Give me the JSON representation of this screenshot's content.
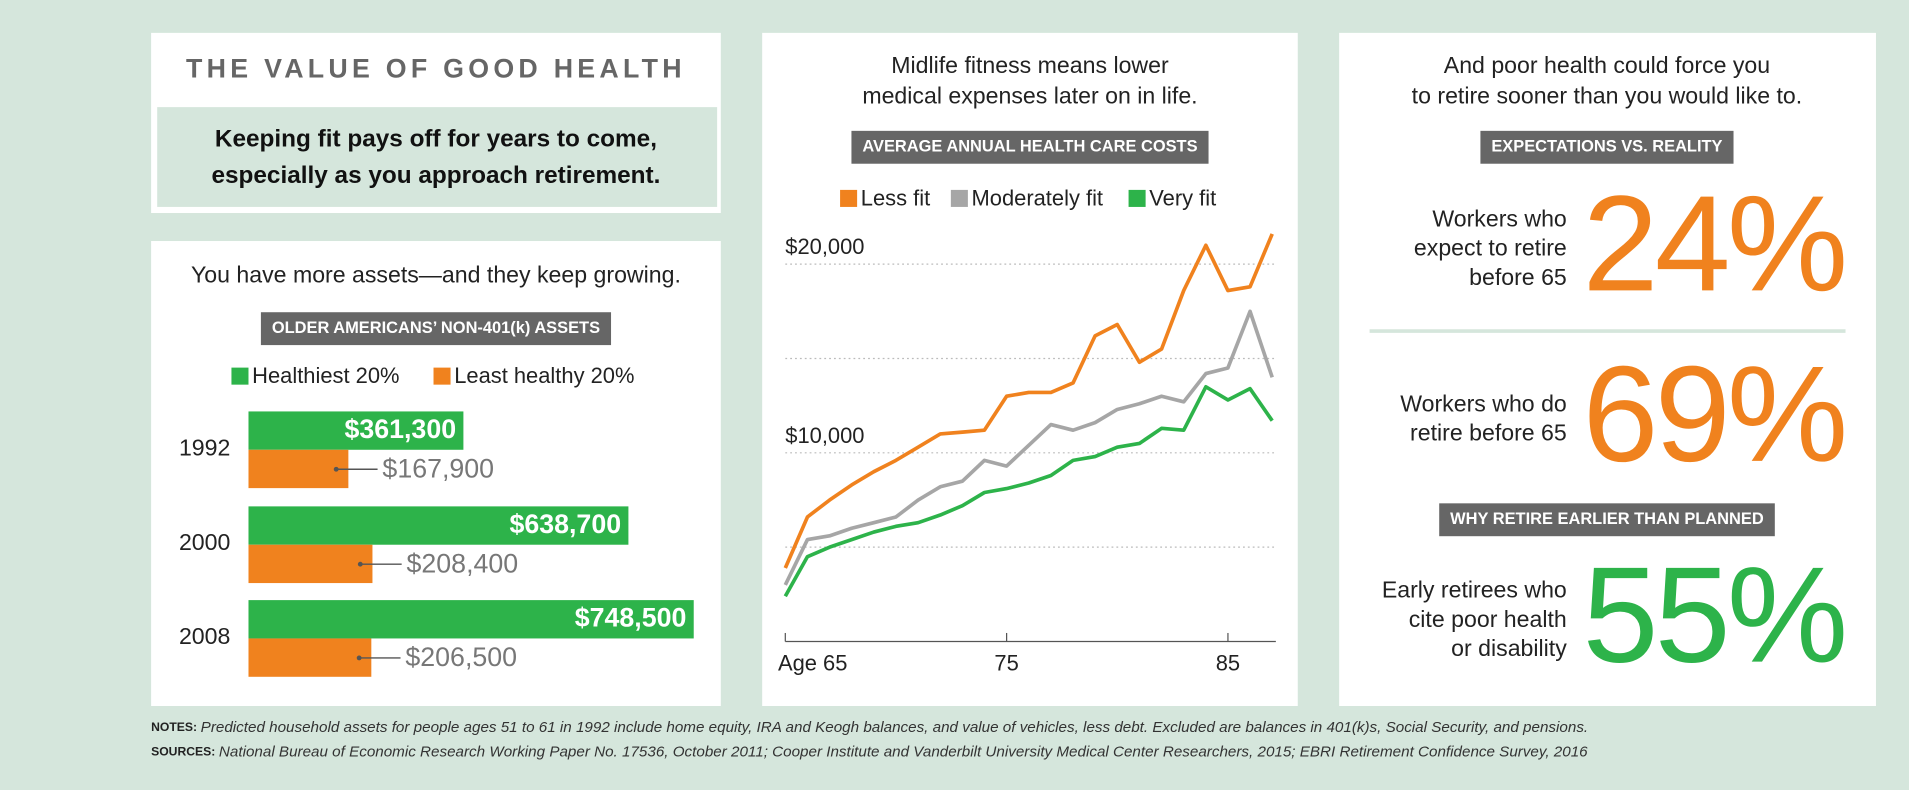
{
  "header": {
    "title": "THE VALUE OF GOOD HEALTH",
    "subtitle": [
      "Keeping fit pays off for years to come,",
      "especially as you approach retirement."
    ]
  },
  "chart_data": [
    {
      "type": "hbar",
      "intro": "You have more assets—and they keep growing.",
      "title": "OLDER AMERICANS’ NON-401(k) ASSETS",
      "categories": [
        "1992",
        "2000",
        "2008"
      ],
      "series": [
        {
          "name": "Healthiest 20%",
          "color": "#2db34a",
          "values": [
            361300,
            638700,
            748500
          ],
          "value_labels": [
            "$361,300",
            "$638,700",
            "$748,500"
          ]
        },
        {
          "name": "Least healthy 20%",
          "color": "#f0821e",
          "values": [
            167900,
            208400,
            206500
          ],
          "value_labels": [
            "$167,900",
            "$208,400",
            "$206,500"
          ]
        }
      ],
      "xlim": [
        0,
        750000
      ]
    },
    {
      "type": "line",
      "intro": [
        "Midlife fitness means lower",
        "medical expenses later on in life."
      ],
      "title": "AVERAGE ANNUAL HEALTH CARE COSTS",
      "x": [
        65,
        66,
        67,
        68,
        69,
        70,
        71,
        72,
        73,
        74,
        75,
        76,
        77,
        78,
        79,
        80,
        81,
        82,
        83,
        84,
        85,
        86,
        87
      ],
      "series": [
        {
          "name": "Less fit",
          "color": "#f0821e",
          "values": [
            3900,
            6600,
            7500,
            8300,
            9000,
            9600,
            10300,
            11000,
            11100,
            11200,
            13000,
            13200,
            13200,
            13700,
            16200,
            16800,
            14800,
            15500,
            18600,
            21000,
            18600,
            18800,
            21600
          ]
        },
        {
          "name": "Moderately fit",
          "color": "#a6a6a6",
          "values": [
            3000,
            5400,
            5600,
            6000,
            6300,
            6600,
            7500,
            8200,
            8500,
            9600,
            9300,
            10400,
            11500,
            11200,
            11600,
            12300,
            12600,
            13000,
            12700,
            14200,
            14500,
            17500,
            14000
          ]
        },
        {
          "name": "Very fit",
          "color": "#2db34a",
          "values": [
            2400,
            4500,
            5000,
            5400,
            5800,
            6100,
            6300,
            6700,
            7200,
            7900,
            8100,
            8400,
            8800,
            9600,
            9800,
            10300,
            10500,
            11300,
            11200,
            13500,
            12800,
            13400,
            11700
          ]
        }
      ],
      "xlim": [
        65,
        87
      ],
      "xticks": [
        {
          "value": 65,
          "label": "Age 65"
        },
        75,
        85
      ],
      "ylim": [
        0,
        22000
      ],
      "yticks": [
        {
          "value": 5000,
          "label": null
        },
        {
          "value": 10000,
          "label": "$10,000"
        },
        {
          "value": 15000,
          "label": null
        },
        {
          "value": 20000,
          "label": "$20,000"
        }
      ],
      "grid": true
    }
  ],
  "stats_panel": {
    "intro": [
      "And poor health could force you",
      "to retire sooner than you would like to."
    ],
    "sections": [
      {
        "heading": "EXPECTATIONS VS. REALITY",
        "items": [
          {
            "label_lines": [
              "Workers who",
              "expect to retire",
              "before 65"
            ],
            "value": 24,
            "value_label": "24%",
            "color": "#f0821e"
          },
          {
            "label_lines": [
              "Workers who do",
              "retire before 65"
            ],
            "value": 69,
            "value_label": "69%",
            "color": "#f0821e"
          }
        ]
      },
      {
        "heading": "WHY RETIRE EARLIER THAN PLANNED",
        "items": [
          {
            "label_lines": [
              "Early retirees who",
              "cite poor health",
              "or disability"
            ],
            "value": 55,
            "value_label": "55%",
            "color": "#2db34a"
          }
        ]
      }
    ]
  },
  "notes": [
    {
      "label": "NOTES:",
      "text": "Predicted household assets for people ages 51 to 61 in 1992 include home equity, IRA and Keogh balances, and value of vehicles, less debt. Excluded are balances in 401(k)s, Social Security, and pensions."
    },
    {
      "label": "SOURCES:",
      "text": "National Bureau of Economic Research Working Paper No. 17536, October 2011; Cooper Institute and Vanderbilt University Medical Center Researchers, 2015; EBRI Retirement Confidence Survey, 2016"
    }
  ]
}
